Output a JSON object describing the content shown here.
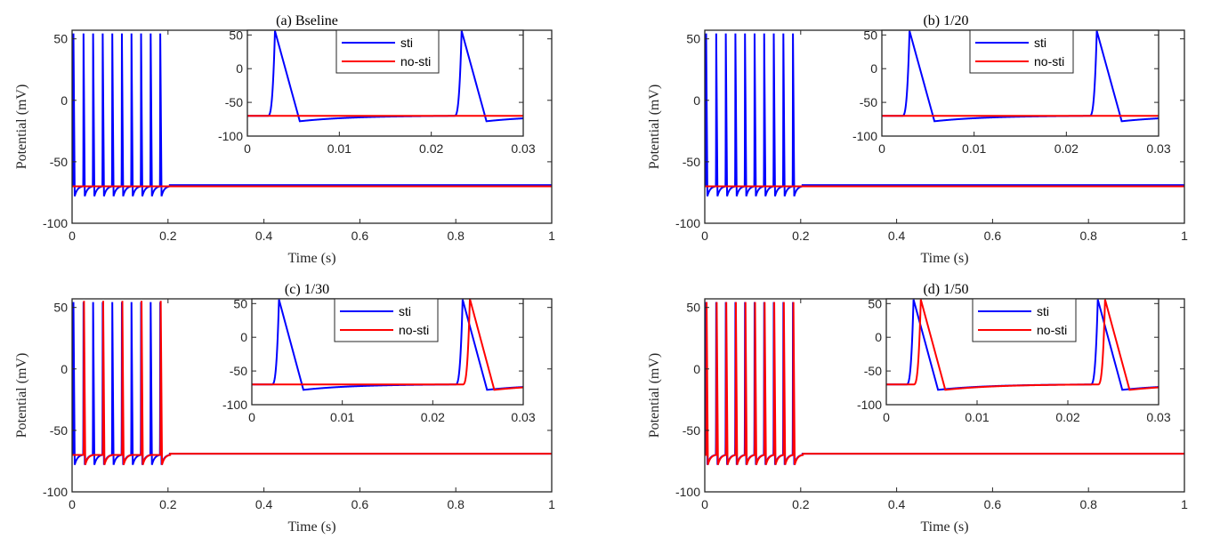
{
  "chart_data": [
    {
      "type": "line",
      "title": "(a) Bseline",
      "xlabel": "Time (s)",
      "ylabel": "Potential (mV)",
      "xlim": [
        0,
        1
      ],
      "ylim": [
        -100,
        57
      ],
      "xticks": [
        "0",
        "0.2",
        "0.4",
        "0.6",
        "0.8",
        "1"
      ],
      "yticks": [
        "-100",
        "-50",
        "0",
        "50"
      ],
      "series": [
        {
          "name": "sti",
          "color": "#0000ff",
          "spike_times": [
            0.002,
            0.023,
            0.043,
            0.063,
            0.083,
            0.103,
            0.123,
            0.143,
            0.163,
            0.183
          ],
          "peak": 56,
          "rest": -70,
          "ahp": -78,
          "after_rest": -69
        },
        {
          "name": "no-sti",
          "color": "#ff0000",
          "spike_times": [],
          "peak": 56,
          "rest": -70,
          "ahp": -78,
          "after_rest": -70
        }
      ],
      "inset": {
        "xlim": [
          0,
          0.03
        ],
        "ylim": [
          -100,
          57
        ],
        "xticks": [
          "0",
          "0.01",
          "0.02",
          "0.03"
        ],
        "yticks": [
          "-100",
          "-50",
          "0",
          "50"
        ],
        "series": [
          {
            "name": "sti",
            "spike_times": [
              0.0022,
              0.0225
            ]
          },
          {
            "name": "no-sti",
            "spike_times": []
          }
        ],
        "legend": [
          "sti",
          "no-sti"
        ]
      }
    },
    {
      "type": "line",
      "title": "(b) 1/20",
      "xlabel": "Time (s)",
      "ylabel": "Potential (mV)",
      "xlim": [
        0,
        1
      ],
      "ylim": [
        -100,
        57
      ],
      "xticks": [
        "0",
        "0.2",
        "0.4",
        "0.6",
        "0.8",
        "1"
      ],
      "yticks": [
        "-100",
        "-50",
        "0",
        "50"
      ],
      "series": [
        {
          "name": "sti",
          "color": "#0000ff",
          "spike_times": [
            0.002,
            0.023,
            0.043,
            0.063,
            0.083,
            0.103,
            0.123,
            0.143,
            0.163,
            0.183
          ],
          "peak": 56,
          "rest": -70,
          "ahp": -78,
          "after_rest": -69
        },
        {
          "name": "no-sti",
          "color": "#ff0000",
          "spike_times": [],
          "peak": 56,
          "rest": -70,
          "ahp": -78,
          "after_rest": -70
        }
      ],
      "inset": {
        "xlim": [
          0,
          0.03
        ],
        "ylim": [
          -100,
          57
        ],
        "xticks": [
          "0",
          "0.01",
          "0.02",
          "0.03"
        ],
        "yticks": [
          "-100",
          "-50",
          "0",
          "50"
        ],
        "series": [
          {
            "name": "sti",
            "spike_times": [
              0.0022,
              0.0225
            ]
          },
          {
            "name": "no-sti",
            "spike_times": []
          }
        ],
        "legend": [
          "sti",
          "no-sti"
        ]
      }
    },
    {
      "type": "line",
      "title": "(c) 1/30",
      "xlabel": "Time (s)",
      "ylabel": "Potential (mV)",
      "xlim": [
        0,
        1
      ],
      "ylim": [
        -100,
        57
      ],
      "xticks": [
        "0",
        "0.2",
        "0.4",
        "0.6",
        "0.8",
        "1"
      ],
      "yticks": [
        "-100",
        "-50",
        "0",
        "50"
      ],
      "series": [
        {
          "name": "sti",
          "color": "#0000ff",
          "spike_times": [
            0.002,
            0.023,
            0.043,
            0.063,
            0.083,
            0.103,
            0.123,
            0.143,
            0.163,
            0.183
          ],
          "peak": 56,
          "rest": -70,
          "ahp": -78,
          "after_rest": -69
        },
        {
          "name": "no-sti",
          "color": "#ff0000",
          "spike_times": [
            0.024,
            0.064,
            0.104,
            0.144,
            0.184
          ],
          "peak": 57,
          "rest": -70,
          "ahp": -78,
          "after_rest": -69
        }
      ],
      "inset": {
        "xlim": [
          0,
          0.03
        ],
        "ylim": [
          -100,
          57
        ],
        "xticks": [
          "0",
          "0.01",
          "0.02",
          "0.03"
        ],
        "yticks": [
          "-100",
          "-50",
          "0",
          "50"
        ],
        "series": [
          {
            "name": "sti",
            "spike_times": [
              0.0022,
              0.0225
            ]
          },
          {
            "name": "no-sti",
            "spike_times": [
              0.0233
            ]
          }
        ],
        "legend": [
          "sti",
          "no-sti"
        ]
      }
    },
    {
      "type": "line",
      "title": "(d) 1/50",
      "xlabel": "Time (s)",
      "ylabel": "Potential (mV)",
      "xlim": [
        0,
        1
      ],
      "ylim": [
        -100,
        57
      ],
      "xticks": [
        "0",
        "0.2",
        "0.4",
        "0.6",
        "0.8",
        "1"
      ],
      "yticks": [
        "-100",
        "-50",
        "0",
        "50"
      ],
      "series": [
        {
          "name": "sti",
          "color": "#0000ff",
          "spike_times": [
            0.002,
            0.023,
            0.043,
            0.063,
            0.083,
            0.103,
            0.123,
            0.143,
            0.163,
            0.183
          ],
          "peak": 56,
          "rest": -70,
          "ahp": -78,
          "after_rest": -69
        },
        {
          "name": "no-sti",
          "color": "#ff0000",
          "spike_times": [
            0.003,
            0.024,
            0.044,
            0.064,
            0.084,
            0.104,
            0.124,
            0.144,
            0.164,
            0.184
          ],
          "peak": 56,
          "rest": -70,
          "ahp": -78,
          "after_rest": -69
        }
      ],
      "inset": {
        "xlim": [
          0,
          0.03
        ],
        "ylim": [
          -100,
          57
        ],
        "xticks": [
          "0",
          "0.01",
          "0.02",
          "0.03"
        ],
        "yticks": [
          "-100",
          "-50",
          "0",
          "50"
        ],
        "series": [
          {
            "name": "sti",
            "spike_times": [
              0.0022,
              0.0225
            ]
          },
          {
            "name": "no-sti",
            "spike_times": [
              0.003,
              0.0233
            ]
          }
        ],
        "legend": [
          "sti",
          "no-sti"
        ]
      }
    }
  ]
}
